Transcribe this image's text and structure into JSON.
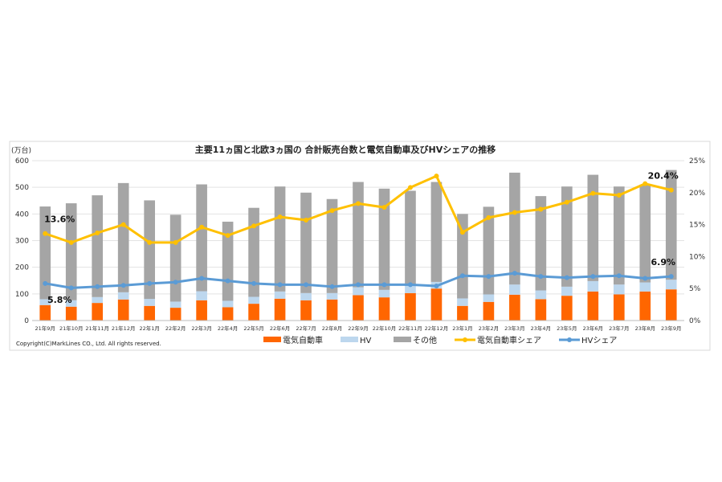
{
  "chart_data": {
    "type": "bar",
    "stacked": true,
    "title": "主要11ヵ国と北欧3ヵ国の 合計販売台数と電気自動車及びHVシェアの推移",
    "ylabel": "(万台)",
    "ylim": [
      0,
      600
    ],
    "yticks": [
      "0",
      "100",
      "200",
      "300",
      "400",
      "500",
      "600"
    ],
    "y2lim": [
      0,
      25
    ],
    "y2ticks": [
      "0%",
      "5%",
      "10%",
      "15%",
      "20%",
      "25%"
    ],
    "grid": true,
    "legend_position": "bottom",
    "categories": [
      "21年9月",
      "21年10月",
      "21年11月",
      "21年12月",
      "22年1月",
      "22年2月",
      "22年3月",
      "22年4月",
      "22年5月",
      "22年6月",
      "22年7月",
      "22年8月",
      "22年9月",
      "22年10月",
      "22年11月",
      "22年12月",
      "23年1月",
      "23年2月",
      "23年3月",
      "23年4月",
      "23年5月",
      "23年6月",
      "23年7月",
      "23年8月",
      "23年9月"
    ],
    "series": [
      {
        "name": "電気自動車",
        "type": "bar",
        "axis": "left",
        "color": "#FF6600",
        "values": [
          58,
          52,
          66,
          79,
          55,
          48,
          76,
          50,
          63,
          82,
          76,
          79,
          95,
          87,
          103,
          120,
          55,
          70,
          97,
          80,
          93,
          109,
          98,
          109,
          117
        ]
      },
      {
        "name": "HV",
        "type": "bar",
        "axis": "left",
        "color": "#BDD7EE",
        "values": [
          22,
          24,
          22,
          27,
          26,
          23,
          34,
          24,
          26,
          27,
          27,
          24,
          30,
          28,
          27,
          25,
          28,
          28,
          38,
          33,
          34,
          39,
          37,
          34,
          36
        ]
      },
      {
        "name": "その他",
        "type": "bar",
        "axis": "left",
        "color": "#A5A5A5",
        "values": [
          348,
          364,
          382,
          410,
          370,
          326,
          401,
          297,
          334,
          394,
          377,
          353,
          395,
          380,
          357,
          375,
          317,
          329,
          420,
          354,
          376,
          399,
          368,
          367,
          412
        ]
      },
      {
        "name": "電気自動車シェア",
        "type": "line",
        "axis": "right",
        "color": "#FFC000",
        "values": [
          13.6,
          12.2,
          13.7,
          15.0,
          12.2,
          12.2,
          14.6,
          13.3,
          14.8,
          16.2,
          15.7,
          17.2,
          18.3,
          17.7,
          20.8,
          22.6,
          13.8,
          16.1,
          16.9,
          17.4,
          18.5,
          19.9,
          19.6,
          21.4,
          20.4
        ]
      },
      {
        "name": "HVシェア",
        "type": "line",
        "axis": "right",
        "color": "#5B9BD5",
        "values": [
          5.8,
          5.1,
          5.3,
          5.5,
          5.8,
          6.0,
          6.6,
          6.2,
          5.8,
          5.6,
          5.6,
          5.3,
          5.6,
          5.6,
          5.6,
          5.4,
          7.0,
          6.9,
          7.4,
          6.9,
          6.7,
          6.9,
          7.0,
          6.6,
          6.9
        ]
      }
    ],
    "data_labels": [
      {
        "series": "電気自動車シェア",
        "category": "21年9月",
        "text": "13.6%"
      },
      {
        "series": "HVシェア",
        "category": "21年9月",
        "text": "5.8%"
      },
      {
        "series": "電気自動車シェア",
        "category": "23年9月",
        "text": "20.4%"
      },
      {
        "series": "HVシェア",
        "category": "23年9月",
        "text": "6.9%"
      }
    ]
  },
  "copyright": "Copyright(C)MarkLines CO., Ltd. All rights reserved."
}
